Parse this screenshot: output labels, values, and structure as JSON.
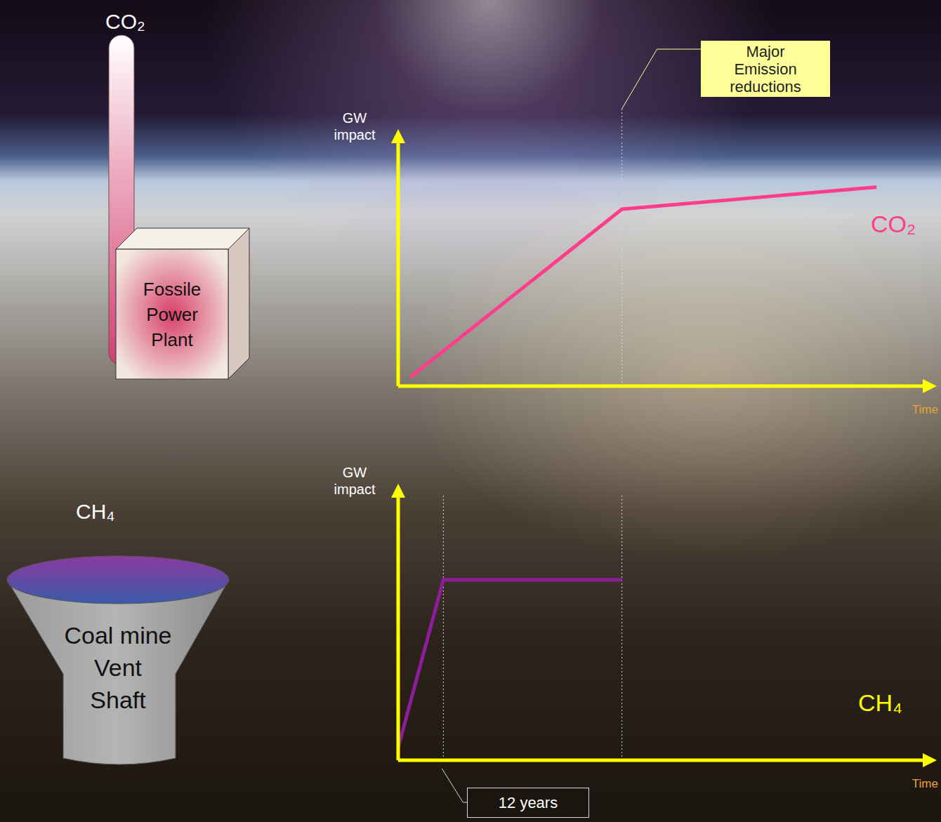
{
  "emission_reductions": {
    "text": "Major Emission reductions",
    "x": 59.4
  },
  "sources": [
    {
      "gas": "CO₂",
      "label": "Fossile Power Plant"
    },
    {
      "gas": "CH₄",
      "label": "Coal mine Vent Shaft"
    }
  ],
  "chart_data": [
    {
      "type": "line",
      "y_label": "GW impact",
      "x_label": "Time",
      "xlim": [
        0,
        140
      ],
      "ylim": [
        0,
        100
      ],
      "tick_labels": false,
      "series": [
        {
          "name": "CO₂",
          "color": "#ff3d8b",
          "x": [
            3.3,
            59.4,
            127
          ],
          "values": [
            3.7,
            72,
            81
          ]
        }
      ]
    },
    {
      "type": "line",
      "y_label": "GW impact",
      "x_label": "Time",
      "xlim": [
        0,
        140
      ],
      "ylim": [
        0,
        100
      ],
      "tick_labels": false,
      "series": [
        {
          "name": "CH₄",
          "color": "#8e1d9a",
          "x": [
            0,
            12,
            59.4
          ],
          "values": [
            4.8,
            68,
            68
          ]
        }
      ],
      "annotations": [
        {
          "text": "12 years",
          "x_start": 0,
          "x_end": 12
        }
      ]
    }
  ]
}
